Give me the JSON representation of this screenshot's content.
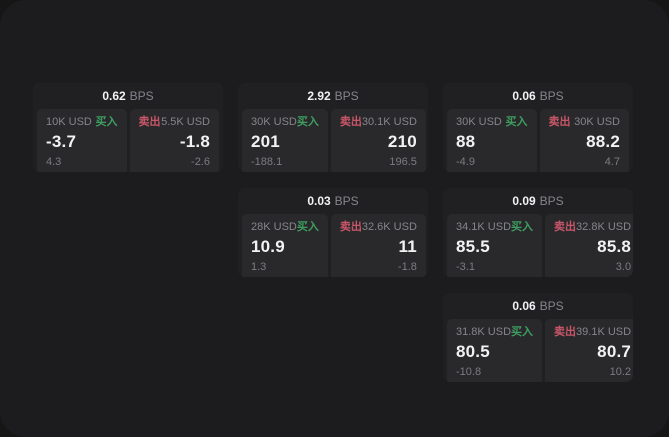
{
  "colors": {
    "outer-bg": "#161617",
    "panel-bg": "#1c1c1e",
    "card-bg": "#202023",
    "tile-bg": "#29292c",
    "text-primary": "#f2f2f4",
    "text-secondary": "#85858b",
    "text-tertiary": "#7c7c81",
    "green": "#3e9e60",
    "red": "#c95668"
  },
  "labels": {
    "bps": "BPS",
    "buy": "买入",
    "sell": "卖出"
  },
  "cards": [
    {
      "bps": "0.62",
      "buy": {
        "amount": "10K USD",
        "value": "-3.7",
        "delta": "4.3"
      },
      "sell": {
        "amount": "5.5K USD",
        "value": "-1.8",
        "delta": "-2.6"
      }
    },
    {
      "bps": "2.92",
      "buy": {
        "amount": "30K USD",
        "value": "201",
        "delta": "-188.1"
      },
      "sell": {
        "amount": "30.1K USD",
        "value": "210",
        "delta": "196.5"
      }
    },
    {
      "bps": "0.06",
      "buy": {
        "amount": "30K USD",
        "value": "88",
        "delta": "-4.9"
      },
      "sell": {
        "amount": "30K USD",
        "value": "88.2",
        "delta": "4.7"
      }
    },
    {
      "bps": "0.03",
      "buy": {
        "amount": "28K USD",
        "value": "10.9",
        "delta": "1.3"
      },
      "sell": {
        "amount": "32.6K USD",
        "value": "11",
        "delta": "-1.8"
      }
    },
    {
      "bps": "0.09",
      "buy": {
        "amount": "34.1K USD",
        "value": "85.5",
        "delta": "-3.1"
      },
      "sell": {
        "amount": "32.8K USD",
        "value": "85.8",
        "delta": "3.0"
      }
    },
    {
      "bps": "0.06",
      "buy": {
        "amount": "31.8K USD",
        "value": "80.5",
        "delta": "-10.8"
      },
      "sell": {
        "amount": "39.1K USD",
        "value": "80.7",
        "delta": "10.2"
      }
    }
  ]
}
